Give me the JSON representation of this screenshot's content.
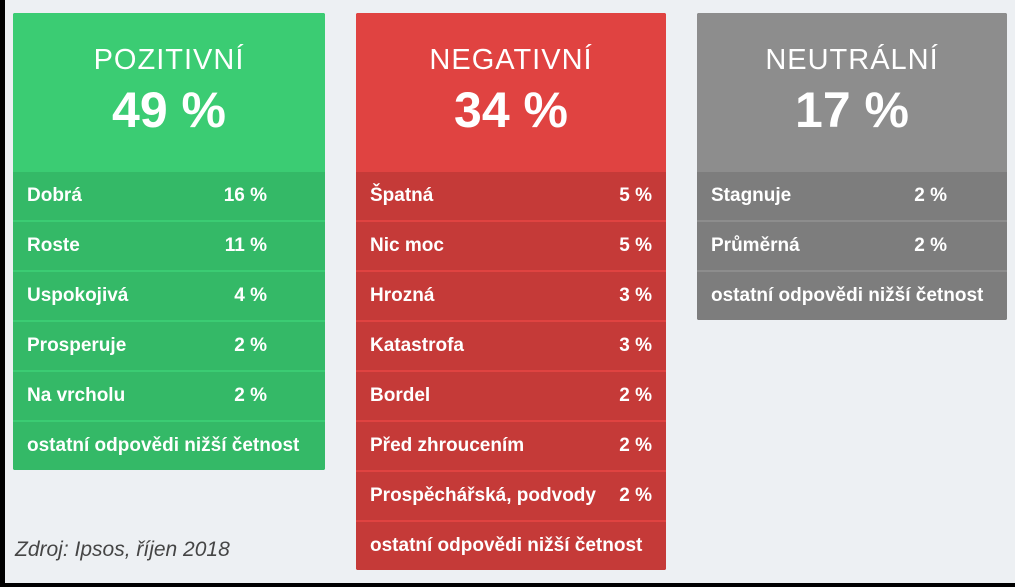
{
  "source": "Zdroj: Ipsos, říjen 2018",
  "background_color": "#edf0f3",
  "panels": [
    {
      "title": "POZITIVNÍ",
      "percent": "49 %",
      "colors": {
        "header": "#3bcc73",
        "rows": "#34b967"
      },
      "rows": [
        {
          "label": "Dobrá",
          "value": "16 %"
        },
        {
          "label": "Roste",
          "value": "11 %"
        },
        {
          "label": "Uspokojivá",
          "value": "4 %"
        },
        {
          "label": "Prosperuje",
          "value": "2 %"
        },
        {
          "label": "Na vrcholu",
          "value": "2 %"
        },
        {
          "label": "ostatní odpovědi nižší četnost",
          "value": ""
        }
      ]
    },
    {
      "title": "NEGATIVNÍ",
      "percent": "34 %",
      "colors": {
        "header": "#e04341",
        "rows": "#c53a38"
      },
      "rows": [
        {
          "label": "Špatná",
          "value": "5 %"
        },
        {
          "label": "Nic moc",
          "value": "5 %"
        },
        {
          "label": "Hrozná",
          "value": "3 %"
        },
        {
          "label": "Katastrofa",
          "value": "3 %"
        },
        {
          "label": "Bordel",
          "value": "2 %"
        },
        {
          "label": "Před zhroucením",
          "value": "2 %"
        },
        {
          "label": "Prospěchářská, podvody",
          "value": "2 %"
        },
        {
          "label": "ostatní odpovědi nižší četnost",
          "value": ""
        }
      ]
    },
    {
      "title": "NEUTRÁLNÍ",
      "percent": "17 %",
      "colors": {
        "header": "#8d8d8d",
        "rows": "#7d7d7d"
      },
      "rows": [
        {
          "label": "Stagnuje",
          "value": "2 %"
        },
        {
          "label": "Průměrná",
          "value": "2 %"
        },
        {
          "label": "ostatní odpovědi nižší četnost",
          "value": ""
        }
      ]
    }
  ],
  "chart_data": {
    "type": "table",
    "series": [
      {
        "name": "POZITIVNÍ",
        "total_percent": 49,
        "answers": [
          {
            "label": "Dobrá",
            "percent": 16
          },
          {
            "label": "Roste",
            "percent": 11
          },
          {
            "label": "Uspokojivá",
            "percent": 4
          },
          {
            "label": "Prosperuje",
            "percent": 2
          },
          {
            "label": "Na vrcholu",
            "percent": 2
          }
        ],
        "note": "ostatní odpovědi nižší četnost",
        "color": "#3bcc73"
      },
      {
        "name": "NEGATIVNÍ",
        "total_percent": 34,
        "answers": [
          {
            "label": "Špatná",
            "percent": 5
          },
          {
            "label": "Nic moc",
            "percent": 5
          },
          {
            "label": "Hrozná",
            "percent": 3
          },
          {
            "label": "Katastrofa",
            "percent": 3
          },
          {
            "label": "Bordel",
            "percent": 2
          },
          {
            "label": "Před zhroucením",
            "percent": 2
          },
          {
            "label": "Prospěchářská, podvody",
            "percent": 2
          }
        ],
        "note": "ostatní odpovědi nižší četnost",
        "color": "#e04341"
      },
      {
        "name": "NEUTRÁLNÍ",
        "total_percent": 17,
        "answers": [
          {
            "label": "Stagnuje",
            "percent": 2
          },
          {
            "label": "Průměrná",
            "percent": 2
          }
        ],
        "note": "ostatní odpovědi nižší četnost",
        "color": "#8d8d8d"
      }
    ],
    "source": "Zdroj: Ipsos, říjen 2018"
  }
}
